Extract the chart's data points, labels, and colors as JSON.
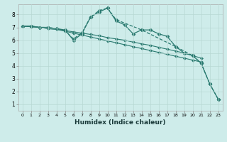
{
  "xlabel": "Humidex (Indice chaleur)",
  "bg_color": "#ceecea",
  "line_color": "#2a7a70",
  "grid_color": "#b8d8d4",
  "yticks": [
    1,
    2,
    3,
    4,
    5,
    6,
    7,
    8
  ],
  "xticks": [
    0,
    1,
    2,
    3,
    4,
    5,
    6,
    7,
    8,
    9,
    10,
    11,
    12,
    13,
    14,
    15,
    16,
    17,
    18,
    19,
    20,
    21,
    22,
    23
  ],
  "lines": [
    {
      "x": [
        0,
        1,
        2,
        3,
        4,
        5,
        6,
        7,
        8,
        9,
        10,
        11,
        12,
        13,
        14,
        15,
        16,
        17,
        18,
        19,
        20,
        21,
        22,
        23
      ],
      "y": [
        7.1,
        7.1,
        7.0,
        7.0,
        6.9,
        6.8,
        6.0,
        6.5,
        7.8,
        8.2,
        8.5,
        7.5,
        7.2,
        6.5,
        6.8,
        6.8,
        6.5,
        6.3,
        5.5,
        5.0,
        4.8,
        4.2,
        2.6,
        1.4
      ],
      "ls": "-",
      "marker": "D",
      "ms": 2.5,
      "lw": 0.9
    },
    {
      "x": [
        0,
        1,
        2,
        3,
        4,
        5,
        6,
        7,
        8,
        9,
        10,
        11,
        12,
        13,
        14,
        15,
        16,
        17,
        18,
        19,
        20,
        21
      ],
      "y": [
        7.1,
        7.05,
        7.0,
        6.9,
        6.85,
        6.75,
        6.65,
        6.55,
        6.45,
        6.35,
        6.2,
        6.1,
        6.0,
        5.85,
        5.72,
        5.6,
        5.45,
        5.3,
        5.15,
        5.0,
        4.8,
        4.6
      ],
      "ls": "-",
      "marker": "D",
      "ms": 2.0,
      "lw": 0.8
    },
    {
      "x": [
        0,
        1,
        2,
        3,
        4,
        5,
        6,
        7,
        8,
        9,
        10,
        11,
        12,
        13,
        14,
        15,
        16,
        17,
        18,
        19,
        20,
        21
      ],
      "y": [
        7.1,
        7.05,
        7.0,
        6.9,
        6.85,
        6.7,
        6.55,
        6.4,
        6.25,
        6.1,
        5.95,
        5.8,
        5.65,
        5.5,
        5.35,
        5.2,
        5.05,
        4.9,
        4.75,
        4.6,
        4.45,
        4.3
      ],
      "ls": "-",
      "marker": "D",
      "ms": 2.0,
      "lw": 0.8
    },
    {
      "x": [
        0,
        1,
        2,
        3,
        4,
        5,
        6,
        7,
        8,
        9,
        10,
        11,
        14,
        18,
        20,
        21,
        22,
        23
      ],
      "y": [
        7.1,
        7.1,
        7.0,
        7.0,
        6.9,
        6.75,
        6.1,
        6.6,
        7.8,
        8.3,
        8.5,
        7.6,
        6.8,
        5.5,
        4.8,
        4.2,
        2.6,
        1.4
      ],
      "ls": "--",
      "marker": "D",
      "ms": 2.5,
      "lw": 0.9
    }
  ]
}
